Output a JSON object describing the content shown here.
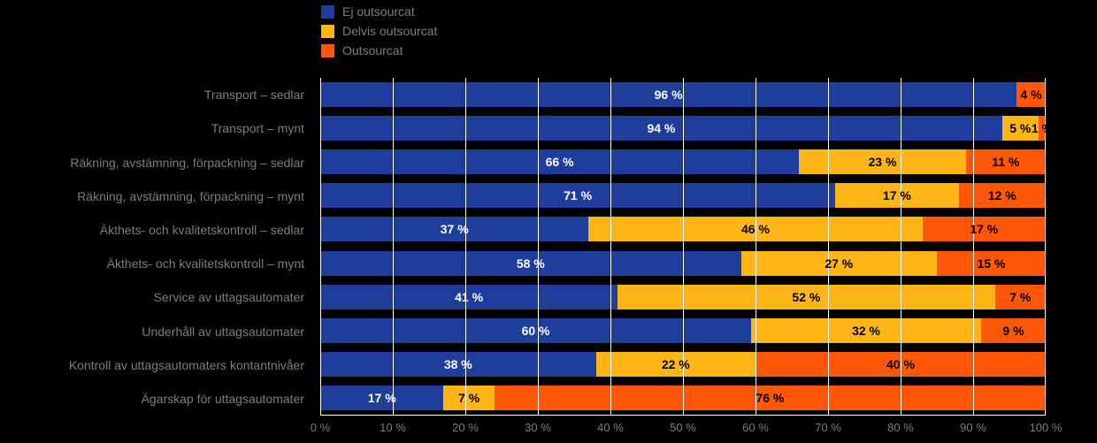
{
  "page": {
    "background": "#000000"
  },
  "colors": {
    "grid": "#FFFFFF",
    "axis_text": "#7D7D7D",
    "background": "#000000"
  },
  "legend": {
    "position": "top",
    "items": [
      {
        "label": "Ej outsourcat",
        "color": "#1F3D9B"
      },
      {
        "label": "Delvis outsourcat",
        "color": "#FFB515"
      },
      {
        "label": "Outsourcat",
        "color": "#FF5608"
      }
    ]
  },
  "chart_data": {
    "type": "bar",
    "orientation": "horizontal-stacked",
    "title": "",
    "xlabel": "",
    "ylabel": "",
    "xlim": [
      0,
      100
    ],
    "grid": true,
    "legend_position": "top",
    "value_suffix": " %",
    "categories": [
      "Transport – sedlar",
      "Transport – mynt",
      "Räkning, avstämning, förpackning – sedlar",
      "Räkning, avstämning, förpackning – mynt",
      "Äkthets- och kvalitetskontroll – sedlar",
      "Äkthets- och kvalitetskontroll – mynt",
      "Service av uttagsautomater",
      "Underhåll av uttagsautomater",
      "Kontroll av uttagsautomaters kontantnivåer",
      "Ägarskap för uttagsautomater"
    ],
    "series": [
      {
        "name": "Ej outsourcat",
        "color": "#1F3D9B",
        "text_color": "#FFFFFF",
        "values": [
          96,
          94,
          66,
          71,
          37,
          58,
          41,
          60,
          38,
          17
        ]
      },
      {
        "name": "Delvis outsourcat",
        "color": "#FFB515",
        "text_color": "#000000",
        "values": [
          0,
          5,
          23,
          17,
          46,
          27,
          52,
          32,
          22,
          7
        ]
      },
      {
        "name": "Outsourcat",
        "color": "#FF5608",
        "text_color": "#000000",
        "values": [
          4,
          1,
          11,
          12,
          17,
          15,
          7,
          9,
          40,
          76
        ]
      }
    ],
    "x_ticks": [
      "0 %",
      "10 %",
      "20 %",
      "30 %",
      "40 %",
      "50 %",
      "60 %",
      "70 %",
      "80 %",
      "90 %",
      "100 %"
    ]
  }
}
